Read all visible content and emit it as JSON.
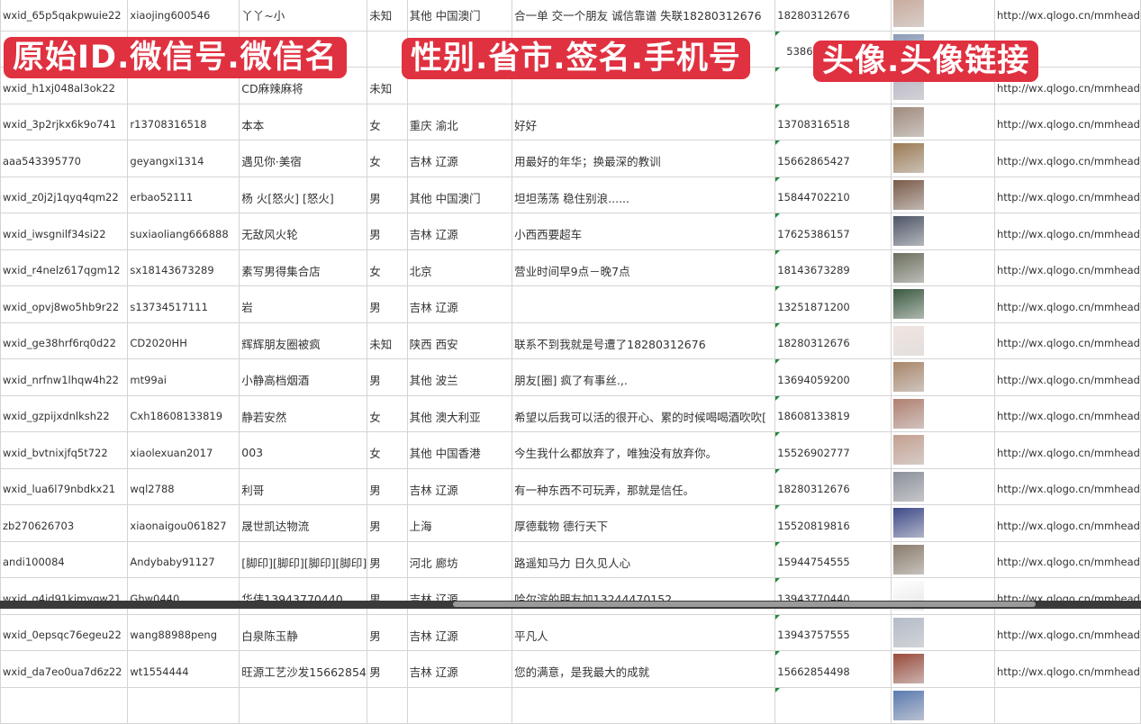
{
  "banners": {
    "left": "原始ID.微信号.微信名",
    "middle": "性别.省市.签名.手机号",
    "right": "头像.头像链接"
  },
  "colors": {
    "banner": "#e03140",
    "grid": "#d4d4d4",
    "text_marker": "#1f8a3a"
  },
  "rows": [
    {
      "id": "wxid_65p5qakpwuie22",
      "wechat": "xiaojing600546",
      "name": "丫丫~小",
      "gender": "未知",
      "region": "其他 中国澳门",
      "signature": "合一单 交一个朋友 诚信靠谱 失联18280312676",
      "phone": "18280312676",
      "link": "http://wx.qlogo.cn/mmhead",
      "avatar": "#c9a99a"
    },
    {
      "id": "",
      "wechat": "",
      "name": "",
      "gender": "",
      "region": "",
      "signature": "",
      "phone": "5386",
      "link": "",
      "avatar": "#8c9ab8"
    },
    {
      "id": "wxid_h1xj048al3ok22",
      "wechat": "",
      "name": "CD麻辣麻将",
      "gender": "未知",
      "region": "",
      "signature": "",
      "phone": "",
      "link": "http://wx.qlogo.cn/mmhead",
      "avatar": "#b7b4c4"
    },
    {
      "id": "wxid_3p2rjkx6k9o741",
      "wechat": "r13708316518",
      "name": "本本",
      "gender": "女",
      "region": "重庆 渝北",
      "signature": "好好",
      "phone": "13708316518",
      "link": "http://wx.qlogo.cn/mmhead",
      "avatar": "#a08a7c"
    },
    {
      "id": "aaa543395770",
      "wechat": "geyangxi1314",
      "name": "遇见你·美宿",
      "gender": "女",
      "region": "吉林 辽源",
      "signature": "用最好的年华；换最深的教训",
      "phone": "15662865427",
      "link": "http://wx.qlogo.cn/mmhead",
      "avatar": "#9c7a54"
    },
    {
      "id": "wxid_z0j2j1qyq4qm22",
      "wechat": "erbao52111",
      "name": "杨 火[怒火] [怒火]",
      "gender": "男",
      "region": "其他 中国澳门",
      "signature": "坦坦荡荡 稳住别浪......",
      "phone": "15844702210",
      "link": "http://wx.qlogo.cn/mmhead",
      "avatar": "#7a5a48"
    },
    {
      "id": "wxid_iwsgnilf34si22",
      "wechat": "suxiaoliang666888",
      "name": "无敌风火轮",
      "gender": "男",
      "region": "吉林 辽源",
      "signature": "小西西要超车",
      "phone": "17625386157",
      "link": "http://wx.qlogo.cn/mmhead",
      "avatar": "#4d5566"
    },
    {
      "id": "wxid_r4nelz617qgm12",
      "wechat": "sx18143673289",
      "name": "素写男得集合店",
      "gender": "女",
      "region": "北京",
      "signature": "营业时间早9点－晚7点",
      "phone": "18143673289",
      "link": "http://wx.qlogo.cn/mmhead",
      "avatar": "#6b6f5e"
    },
    {
      "id": "wxid_opvj8wo5hb9r22",
      "wechat": "s13734517111",
      "name": "岩",
      "gender": "男",
      "region": "吉林 辽源",
      "signature": "",
      "phone": "13251871200",
      "link": "http://wx.qlogo.cn/mmhead",
      "avatar": "#3a5a40"
    },
    {
      "id": "wxid_ge38hrf6rq0d22",
      "wechat": "CD2020HH",
      "name": "辉辉朋友圈被疯",
      "gender": "未知",
      "region": "陕西 西安",
      "signature": "联系不到我就是号遭了18280312676",
      "phone": "18280312676",
      "link": "http://wx.qlogo.cn/mmhead",
      "avatar": "#f1e4e0"
    },
    {
      "id": "wxid_nrfnw1lhqw4h22",
      "wechat": "mt99ai",
      "name": "小静高档烟酒",
      "gender": "男",
      "region": "其他 波兰",
      "signature": "朋友[圈] 疯了有事丝.,.",
      "phone": "13694059200",
      "link": "http://wx.qlogo.cn/mmhead",
      "avatar": "#a8866a"
    },
    {
      "id": "wxid_gzpijxdnlksh22",
      "wechat": "Cxh18608133819",
      "name": "静若安然",
      "gender": "女",
      "region": "其他 澳大利亚",
      "signature": "希望以后我可以活的很开心、累的时候喝喝酒吹吹[",
      "phone": "18608133819",
      "link": "http://wx.qlogo.cn/mmhead",
      "avatar": "#b08070"
    },
    {
      "id": "wxid_bvtnixjfq5t722",
      "wechat": "xiaolexuan2017",
      "name": "003",
      "gender": "女",
      "region": "其他 中国香港",
      "signature": "今生我什么都放弃了，唯独没有放弃你。",
      "phone": "15526902777",
      "link": "http://wx.qlogo.cn/mmhead",
      "avatar": "#c4a090"
    },
    {
      "id": "wxid_lua6l79nbdkx21",
      "wechat": "wql2788",
      "name": "利哥",
      "gender": "男",
      "region": "吉林 辽源",
      "signature": "有一种东西不可玩弄，那就是信任。",
      "phone": "18280312676",
      "link": "http://wx.qlogo.cn/mmhead",
      "avatar": "#8a8f99"
    },
    {
      "id": "zb270626703",
      "wechat": "xiaonaigou061827",
      "name": "晟世凯达物流",
      "gender": "男",
      "region": "上海",
      "signature": "厚德载物 德行天下",
      "phone": "15520819816",
      "link": "http://wx.qlogo.cn/mmhead",
      "avatar": "#3d4a8a"
    },
    {
      "id": "andi100084",
      "wechat": "Andybaby91127",
      "name": "[脚印][脚印][脚印][脚印]",
      "gender": "男",
      "region": "河北 廊坊",
      "signature": "路遥知马力 日久见人心",
      "phone": "15944754555",
      "link": "http://wx.qlogo.cn/mmhead",
      "avatar": "#8a7c6c"
    },
    {
      "id": "wxid_q4jd91kimygw21",
      "wechat": "Ghw0440",
      "name": "华伟13943770440",
      "gender": "男",
      "region": "吉林 辽源",
      "signature": "哈尔滨的朋友加13244470152",
      "phone": "13943770440",
      "link": "http://wx.qlogo.cn/mmhead",
      "avatar": "#ffffff"
    },
    {
      "id": "wxid_0epsqc76egeu22",
      "wechat": "wang88988peng",
      "name": "白泉陈玉静",
      "gender": "男",
      "region": "吉林 辽源",
      "signature": "平凡人",
      "phone": "13943757555",
      "link": "http://wx.qlogo.cn/mmhead",
      "avatar": "#b4bcc8"
    },
    {
      "id": "wxid_da7eo0ua7d6z22",
      "wechat": "wt1554444",
      "name": "旺源工艺沙发15662854",
      "gender": "男",
      "region": "吉林 辽源",
      "signature": "您的满意，是我最大的成就",
      "phone": "15662854498",
      "link": "http://wx.qlogo.cn/mmhead",
      "avatar": "#9a4a3a"
    },
    {
      "id": "",
      "wechat": "",
      "name": "",
      "gender": "",
      "region": "",
      "signature": "",
      "phone": "",
      "link": "",
      "avatar": "#5a7ab0"
    }
  ]
}
